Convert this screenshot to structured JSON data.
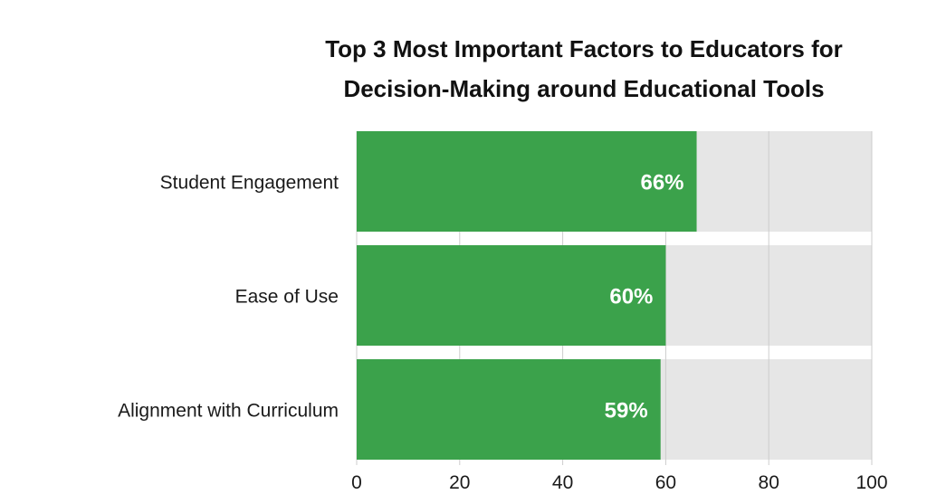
{
  "chart_data": {
    "type": "bar",
    "orientation": "horizontal",
    "title_lines": [
      "Top 3 Most Important Factors to Educators for",
      "Decision-Making around Educational Tools"
    ],
    "categories": [
      "Student Engagement",
      "Ease of Use",
      "Alignment with Curriculum"
    ],
    "values": [
      66,
      60,
      59
    ],
    "value_labels": [
      "66%",
      "60%",
      "59%"
    ],
    "xlim": [
      0,
      100
    ],
    "xticks": [
      0,
      20,
      40,
      60,
      80,
      100
    ],
    "xtick_labels": [
      "0",
      "20",
      "40",
      "60",
      "80",
      "100"
    ],
    "xlabel": "",
    "ylabel": "",
    "grid": true,
    "legend": "none",
    "colors": {
      "bar": "#3ba24b",
      "track": "#e6e6e6",
      "grid": "#cccccc",
      "value_label": "#ffffff",
      "text": "#1a1a1a"
    }
  }
}
